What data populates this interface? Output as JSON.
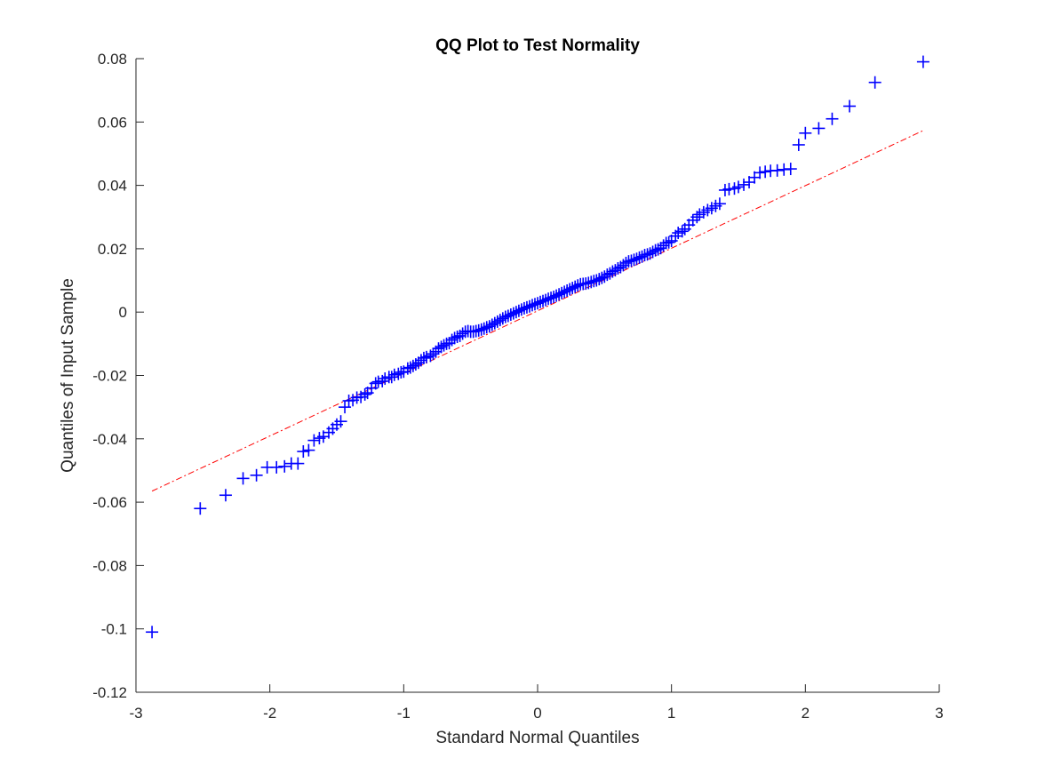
{
  "chart_data": {
    "type": "scatter",
    "title": "QQ Plot to Test Normality",
    "xlabel": "Standard Normal Quantiles",
    "ylabel": "Quantiles of Input Sample",
    "xlim": [
      -3,
      3
    ],
    "ylim": [
      -0.12,
      0.08
    ],
    "xticks": [
      -3,
      -2,
      -1,
      0,
      1,
      2,
      3
    ],
    "xtick_labels": [
      "-3",
      "-2",
      "-1",
      "0",
      "1",
      "2",
      "3"
    ],
    "yticks": [
      -0.12,
      -0.1,
      -0.08,
      -0.06,
      -0.04,
      -0.02,
      0,
      0.02,
      0.04,
      0.06,
      0.08
    ],
    "ytick_labels": [
      "-0.12",
      "-0.1",
      "-0.08",
      "-0.06",
      "-0.04",
      "-0.02",
      "0",
      "0.02",
      "0.04",
      "0.06",
      "0.08"
    ],
    "grid": false,
    "legend": "none",
    "series": [
      {
        "marker": "+",
        "color": "#0000ff",
        "points": [
          [
            -2.88,
            -0.101
          ],
          [
            -2.52,
            -0.062
          ],
          [
            -2.33,
            -0.0578
          ],
          [
            -2.2,
            -0.0525
          ],
          [
            -2.1,
            -0.0515
          ],
          [
            -2.02,
            -0.049
          ],
          [
            -1.95,
            -0.049
          ],
          [
            -1.89,
            -0.0487
          ],
          [
            -1.84,
            -0.0478
          ],
          [
            -1.79,
            -0.0478
          ],
          [
            -1.75,
            -0.044
          ],
          [
            -1.71,
            -0.0436
          ],
          [
            -1.67,
            -0.0405
          ],
          [
            -1.63,
            -0.0398
          ],
          [
            -1.6,
            -0.0393
          ],
          [
            -1.56,
            -0.038
          ],
          [
            -1.53,
            -0.0368
          ],
          [
            -1.5,
            -0.0355
          ],
          [
            -1.47,
            -0.0345
          ],
          [
            -1.44,
            -0.03
          ],
          [
            -1.41,
            -0.028
          ],
          [
            -1.38,
            -0.0278
          ],
          [
            -1.35,
            -0.027
          ],
          [
            -1.32,
            -0.0268
          ],
          [
            -1.29,
            -0.026
          ],
          [
            -1.27,
            -0.0255
          ],
          [
            -1.24,
            -0.024
          ],
          [
            -1.21,
            -0.0225
          ],
          [
            -1.19,
            -0.022
          ],
          [
            -1.16,
            -0.0218
          ],
          [
            -1.14,
            -0.021
          ],
          [
            -1.11,
            -0.0205
          ],
          [
            -1.09,
            -0.0205
          ],
          [
            -1.07,
            -0.0198
          ],
          [
            -1.04,
            -0.0195
          ],
          [
            -1.02,
            -0.019
          ],
          [
            -1.0,
            -0.0188
          ],
          [
            -0.97,
            -0.0178
          ],
          [
            -0.95,
            -0.0175
          ],
          [
            -0.93,
            -0.017
          ],
          [
            -0.91,
            -0.0165
          ],
          [
            -0.89,
            -0.016
          ],
          [
            -0.87,
            -0.0152
          ],
          [
            -0.85,
            -0.0145
          ],
          [
            -0.83,
            -0.0142
          ],
          [
            -0.8,
            -0.0138
          ],
          [
            -0.78,
            -0.0132
          ],
          [
            -0.76,
            -0.0125
          ],
          [
            -0.74,
            -0.0115
          ],
          [
            -0.72,
            -0.011
          ],
          [
            -0.7,
            -0.0105
          ],
          [
            -0.68,
            -0.01
          ],
          [
            -0.66,
            -0.0098
          ],
          [
            -0.64,
            -0.0088
          ],
          [
            -0.62,
            -0.0082
          ],
          [
            -0.6,
            -0.0078
          ],
          [
            -0.58,
            -0.0075
          ],
          [
            -0.56,
            -0.0068
          ],
          [
            -0.54,
            -0.0062
          ],
          [
            -0.52,
            -0.006
          ],
          [
            -0.5,
            -0.0062
          ],
          [
            -0.48,
            -0.0062
          ],
          [
            -0.46,
            -0.006
          ],
          [
            -0.44,
            -0.0058
          ],
          [
            -0.42,
            -0.0055
          ],
          [
            -0.4,
            -0.0052
          ],
          [
            -0.38,
            -0.0048
          ],
          [
            -0.36,
            -0.0045
          ],
          [
            -0.34,
            -0.004
          ],
          [
            -0.32,
            -0.0035
          ],
          [
            -0.3,
            -0.003
          ],
          [
            -0.28,
            -0.0025
          ],
          [
            -0.26,
            -0.002
          ],
          [
            -0.24,
            -0.0015
          ],
          [
            -0.22,
            -0.0012
          ],
          [
            -0.2,
            -0.0008
          ],
          [
            -0.18,
            -0.0004
          ],
          [
            -0.16,
            0.0
          ],
          [
            -0.14,
            0.0004
          ],
          [
            -0.12,
            0.0008
          ],
          [
            -0.1,
            0.0012
          ],
          [
            -0.08,
            0.0015
          ],
          [
            -0.06,
            0.0018
          ],
          [
            -0.04,
            0.0022
          ],
          [
            -0.02,
            0.0025
          ],
          [
            0.0,
            0.0028
          ],
          [
            0.02,
            0.0032
          ],
          [
            0.04,
            0.0035
          ],
          [
            0.06,
            0.0038
          ],
          [
            0.08,
            0.0042
          ],
          [
            0.1,
            0.0045
          ],
          [
            0.12,
            0.0048
          ],
          [
            0.14,
            0.0052
          ],
          [
            0.16,
            0.0056
          ],
          [
            0.18,
            0.006
          ],
          [
            0.2,
            0.0064
          ],
          [
            0.22,
            0.0068
          ],
          [
            0.24,
            0.0072
          ],
          [
            0.26,
            0.0076
          ],
          [
            0.28,
            0.008
          ],
          [
            0.3,
            0.0084
          ],
          [
            0.32,
            0.0088
          ],
          [
            0.34,
            0.0089
          ],
          [
            0.36,
            0.009
          ],
          [
            0.38,
            0.0092
          ],
          [
            0.4,
            0.0095
          ],
          [
            0.42,
            0.0098
          ],
          [
            0.44,
            0.01
          ],
          [
            0.46,
            0.0104
          ],
          [
            0.48,
            0.0108
          ],
          [
            0.5,
            0.0112
          ],
          [
            0.52,
            0.0118
          ],
          [
            0.54,
            0.0122
          ],
          [
            0.56,
            0.0128
          ],
          [
            0.58,
            0.0132
          ],
          [
            0.6,
            0.0138
          ],
          [
            0.62,
            0.0142
          ],
          [
            0.64,
            0.0148
          ],
          [
            0.66,
            0.0155
          ],
          [
            0.68,
            0.016
          ],
          [
            0.7,
            0.0162
          ],
          [
            0.72,
            0.0165
          ],
          [
            0.74,
            0.0168
          ],
          [
            0.76,
            0.0172
          ],
          [
            0.78,
            0.0175
          ],
          [
            0.8,
            0.018
          ],
          [
            0.82,
            0.0182
          ],
          [
            0.84,
            0.0185
          ],
          [
            0.86,
            0.019
          ],
          [
            0.88,
            0.0195
          ],
          [
            0.9,
            0.0198
          ],
          [
            0.92,
            0.0202
          ],
          [
            0.94,
            0.021
          ],
          [
            0.96,
            0.0218
          ],
          [
            0.98,
            0.022
          ],
          [
            1.0,
            0.0225
          ],
          [
            1.03,
            0.024
          ],
          [
            1.05,
            0.025
          ],
          [
            1.08,
            0.0255
          ],
          [
            1.1,
            0.0262
          ],
          [
            1.13,
            0.0275
          ],
          [
            1.16,
            0.029
          ],
          [
            1.19,
            0.03
          ],
          [
            1.21,
            0.0308
          ],
          [
            1.24,
            0.0315
          ],
          [
            1.27,
            0.0322
          ],
          [
            1.3,
            0.0328
          ],
          [
            1.33,
            0.0335
          ],
          [
            1.36,
            0.0342
          ],
          [
            1.4,
            0.0385
          ],
          [
            1.43,
            0.0388
          ],
          [
            1.47,
            0.039
          ],
          [
            1.5,
            0.0395
          ],
          [
            1.54,
            0.0402
          ],
          [
            1.58,
            0.041
          ],
          [
            1.62,
            0.0425
          ],
          [
            1.66,
            0.044
          ],
          [
            1.7,
            0.0443
          ],
          [
            1.74,
            0.0446
          ],
          [
            1.79,
            0.0447
          ],
          [
            1.84,
            0.045
          ],
          [
            1.89,
            0.0452
          ],
          [
            1.95,
            0.0528
          ],
          [
            2.0,
            0.0565
          ],
          [
            2.1,
            0.058
          ],
          [
            2.2,
            0.061
          ],
          [
            2.33,
            0.065
          ],
          [
            2.52,
            0.0725
          ],
          [
            2.88,
            0.079
          ]
        ]
      }
    ],
    "reference_line": {
      "style": "dash-dot",
      "color": "#ff0000",
      "x": [
        -2.88,
        2.88
      ],
      "y": [
        -0.0565,
        0.0573
      ]
    }
  }
}
